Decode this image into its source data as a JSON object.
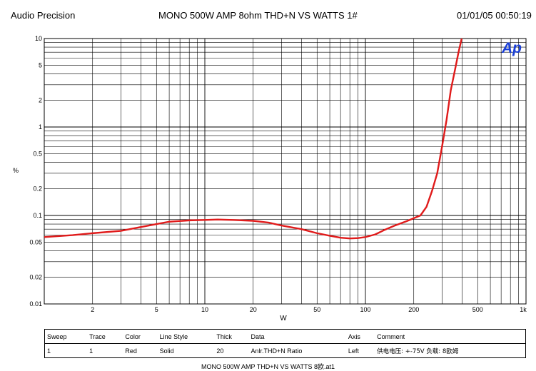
{
  "header": {
    "brand": "Audio Precision",
    "title": "MONO 500W AMP  8ohm THD+N  VS   WATTS  1#",
    "timestamp": "01/01/05 00:50:19"
  },
  "logo": {
    "text": "Ap",
    "color": "#1a3fd6"
  },
  "chart_data": {
    "type": "line",
    "title": "MONO 500W AMP  8ohm THD+N  VS   WATTS  1#",
    "xlabel": "W",
    "ylabel": "%",
    "xscale": "log",
    "yscale": "log",
    "xlim": [
      1,
      1000
    ],
    "ylim": [
      0.01,
      10
    ],
    "grid": true,
    "x_ticks": [
      {
        "v": 2,
        "label": "2"
      },
      {
        "v": 5,
        "label": "5"
      },
      {
        "v": 10,
        "label": "10"
      },
      {
        "v": 20,
        "label": "20"
      },
      {
        "v": 50,
        "label": "50"
      },
      {
        "v": 100,
        "label": "100"
      },
      {
        "v": 200,
        "label": "200"
      },
      {
        "v": 500,
        "label": "500"
      },
      {
        "v": 1000,
        "label": "1k"
      }
    ],
    "y_ticks": [
      {
        "v": 0.01,
        "label": "0.01"
      },
      {
        "v": 0.02,
        "label": "0.02"
      },
      {
        "v": 0.05,
        "label": "0.05"
      },
      {
        "v": 0.1,
        "label": "0.1"
      },
      {
        "v": 0.2,
        "label": "0.2"
      },
      {
        "v": 0.5,
        "label": "0.5"
      },
      {
        "v": 1,
        "label": "1"
      },
      {
        "v": 2,
        "label": "2"
      },
      {
        "v": 5,
        "label": "5"
      },
      {
        "v": 10,
        "label": "10"
      }
    ],
    "series": [
      {
        "color": "#e01b1b",
        "points": [
          [
            1,
            0.057
          ],
          [
            1.5,
            0.06
          ],
          [
            2,
            0.063
          ],
          [
            3,
            0.067
          ],
          [
            4,
            0.074
          ],
          [
            5,
            0.08
          ],
          [
            6,
            0.085
          ],
          [
            8,
            0.088
          ],
          [
            10,
            0.089
          ],
          [
            12,
            0.09
          ],
          [
            15,
            0.089
          ],
          [
            20,
            0.087
          ],
          [
            25,
            0.083
          ],
          [
            30,
            0.077
          ],
          [
            40,
            0.07
          ],
          [
            50,
            0.063
          ],
          [
            60,
            0.059
          ],
          [
            70,
            0.056
          ],
          [
            80,
            0.055
          ],
          [
            90,
            0.0555
          ],
          [
            100,
            0.057
          ],
          [
            115,
            0.061
          ],
          [
            130,
            0.068
          ],
          [
            150,
            0.076
          ],
          [
            180,
            0.086
          ],
          [
            200,
            0.093
          ],
          [
            220,
            0.1
          ],
          [
            240,
            0.125
          ],
          [
            260,
            0.19
          ],
          [
            280,
            0.3
          ],
          [
            300,
            0.6
          ],
          [
            320,
            1.2
          ],
          [
            340,
            2.6
          ],
          [
            360,
            4.3
          ],
          [
            380,
            7
          ],
          [
            395,
            9.5
          ],
          [
            400,
            10.5
          ]
        ]
      }
    ]
  },
  "legend": {
    "columns": [
      "Sweep",
      "Trace",
      "Color",
      "Line Style",
      "Thick",
      "Data",
      "Axis",
      "Comment"
    ],
    "rows": [
      [
        "1",
        "1",
        "Red",
        "Solid",
        "20",
        "Anlr.THD+N Ratio",
        "Left",
        "供电电压: +-75V  负载: 8欧姆"
      ]
    ]
  },
  "footer": "MONO 500W AMP THD+N VS WATTS 8欧.at1"
}
